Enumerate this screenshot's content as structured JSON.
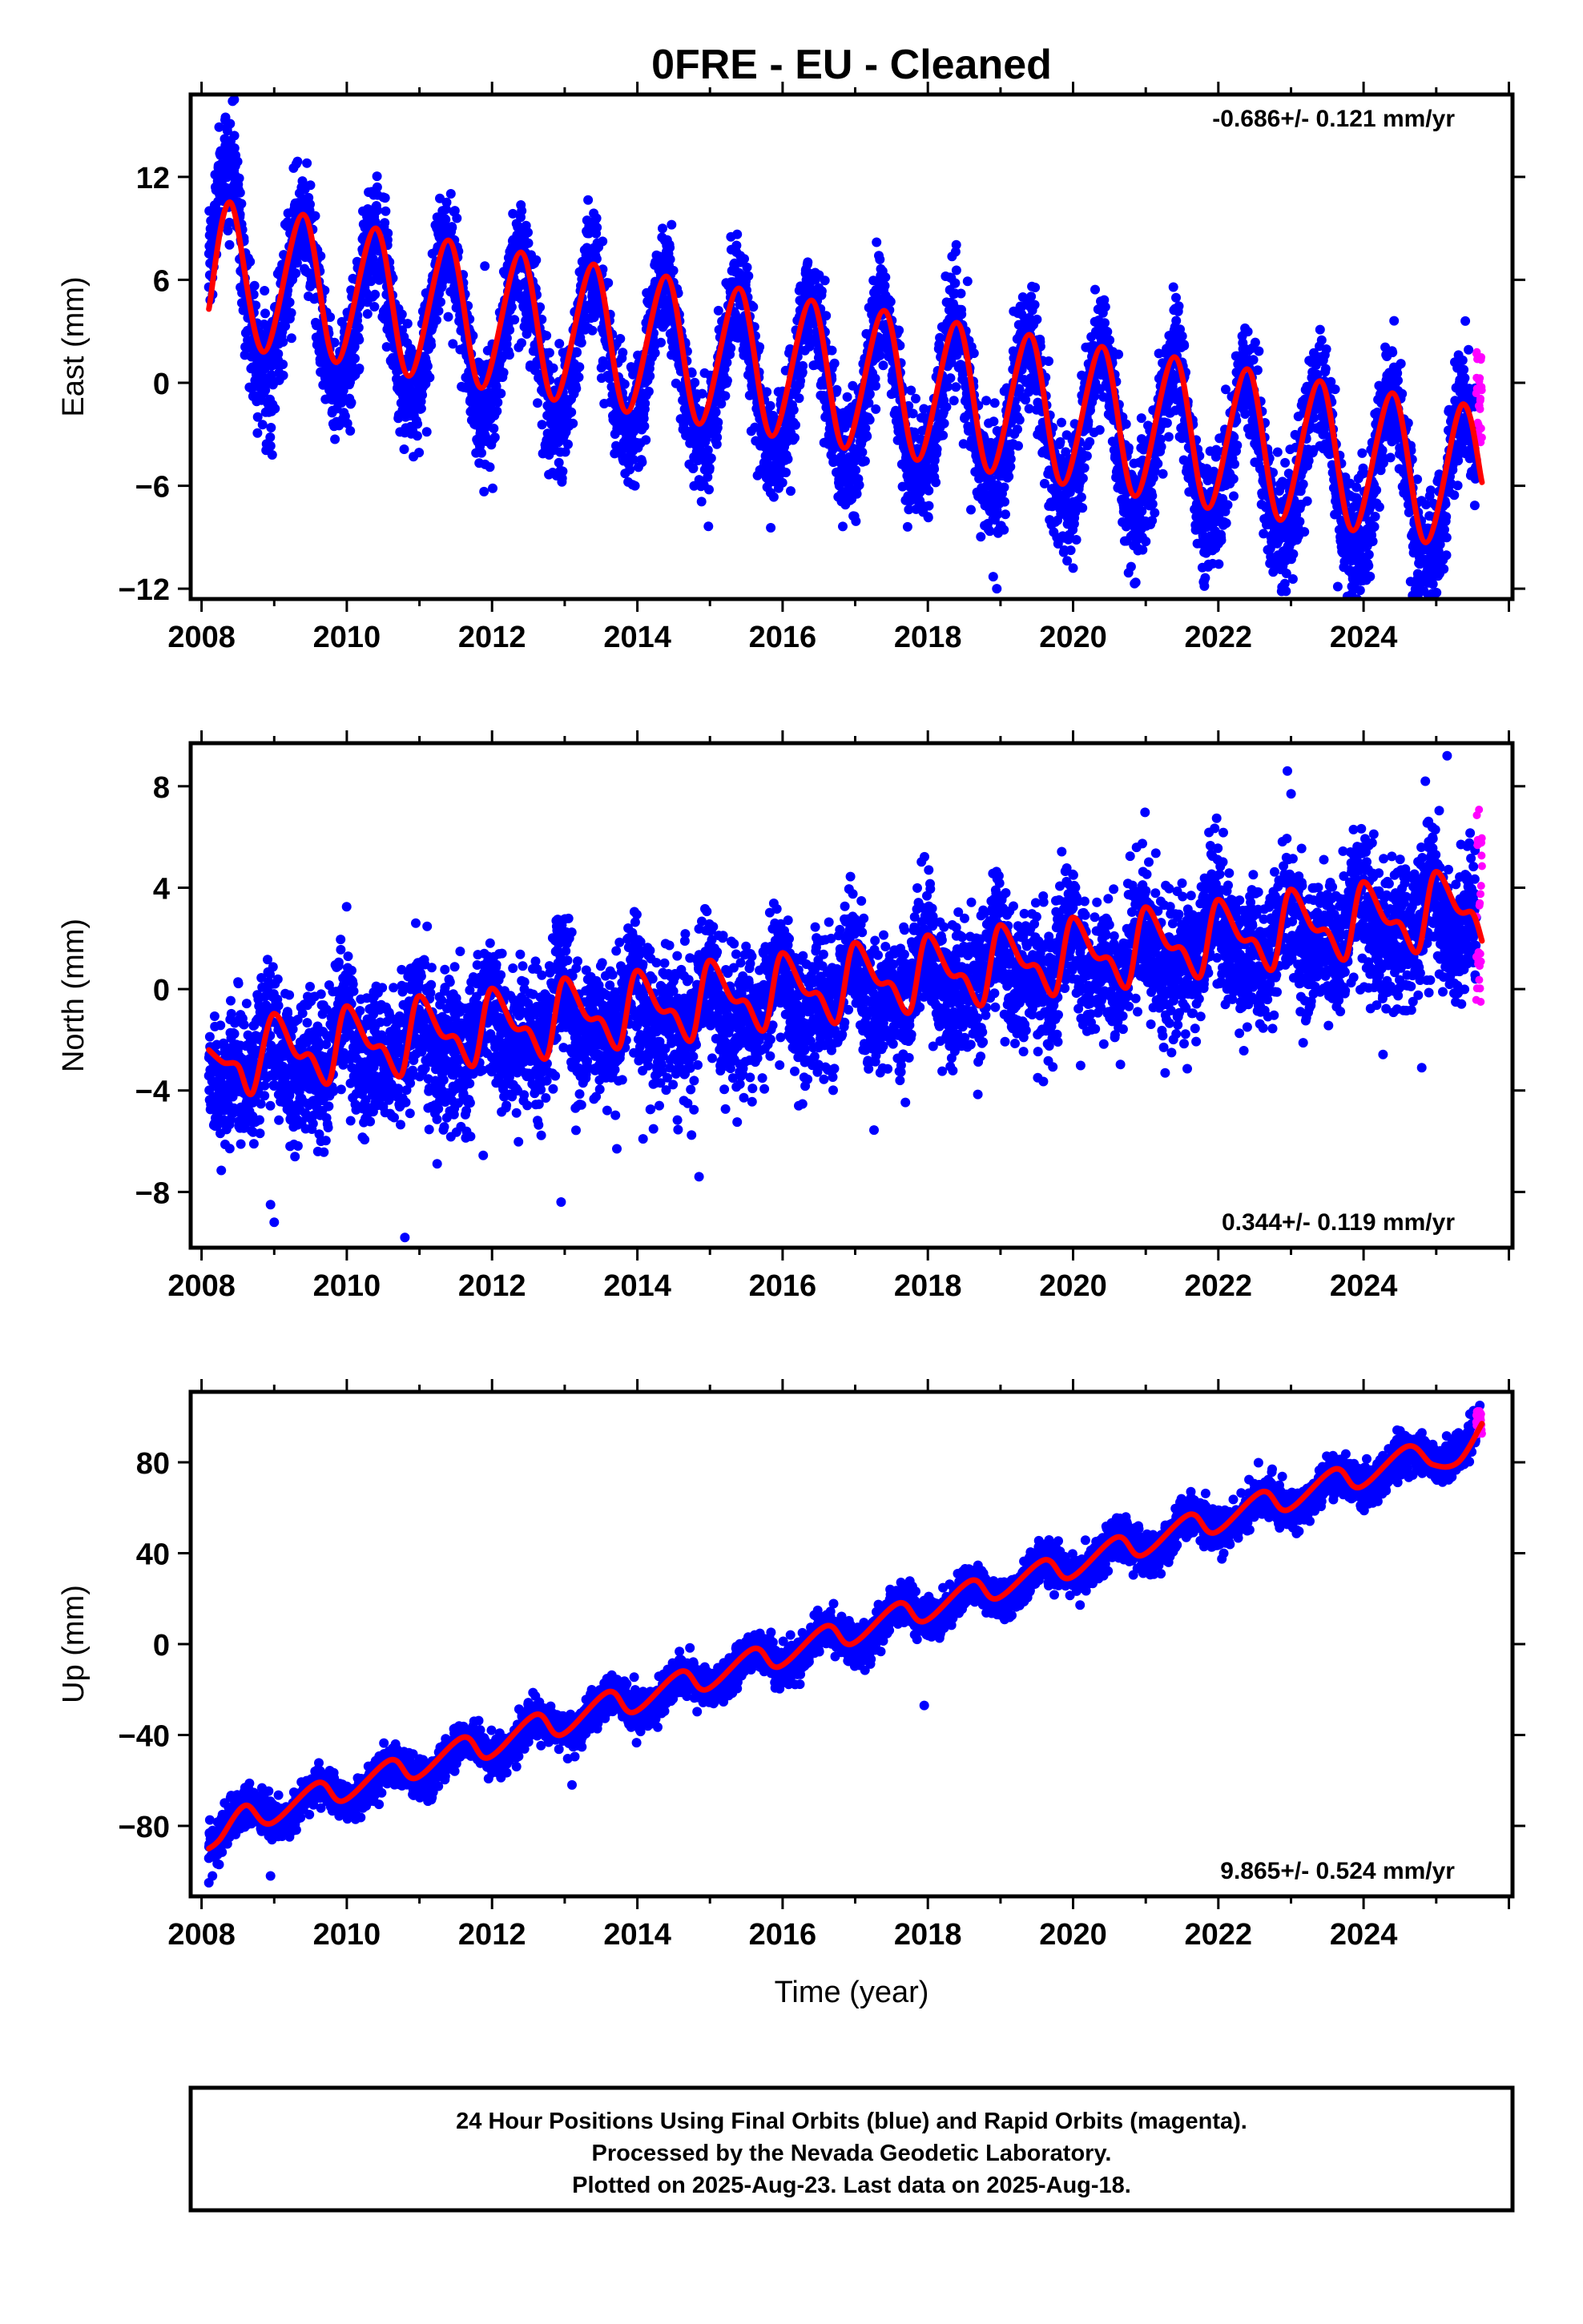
{
  "title": "0FRE  - EU - Cleaned",
  "colors": {
    "final_orbits": "#0000ff",
    "rapid_orbits": "#ff00ff",
    "model": "#ff0000",
    "frame": "#000000",
    "background": "#ffffff"
  },
  "chart_data": [
    {
      "type": "scatter",
      "panel": "east",
      "ylabel": "East (mm)",
      "xlabel": "",
      "rate_text": "-0.686+/- 0.121 mm/yr",
      "rate_position": "top-right",
      "xlim": [
        2007.85,
        2026.05
      ],
      "ylim": [
        -12.6,
        16.8
      ],
      "x_ticks": [
        2008,
        2010,
        2012,
        2014,
        2016,
        2018,
        2020,
        2022,
        2024
      ],
      "x_tick_labels": [
        "2008",
        "2010",
        "2012",
        "2014",
        "2016",
        "2018",
        "2020",
        "2022",
        "2024"
      ],
      "y_ticks": [
        -12,
        -6,
        0,
        6,
        12
      ],
      "y_tick_labels": [
        "-12",
        "-6",
        "0",
        "6",
        "12"
      ],
      "grid": false,
      "series": [
        {
          "name": "Final Orbits (blue)",
          "kind": "scatter",
          "x_range": [
            2008.1,
            2025.55
          ],
          "approx_points": 6300,
          "model": {
            "intercept_at_2008": 5.5,
            "rate_mm_per_yr": -0.686,
            "annual_amplitude": 4.6,
            "annual_peak_phase_yr": 0.38,
            "semiannual_amplitude": 0.4,
            "scatter_sd": 1.7
          },
          "extra_early_offset": {
            "until": 2008.55,
            "value": 2.5
          },
          "outliers": [
            [
              2018.95,
              -12.0
            ],
            [
              2018.9,
              -11.3
            ],
            [
              2020.0,
              -10.8
            ],
            [
              2024.95,
              -10.6
            ],
            [
              2025.4,
              3.6
            ],
            [
              2011.9,
              6.8
            ],
            [
              2009.45,
              12.8
            ],
            [
              2008.45,
              16.5
            ]
          ]
        },
        {
          "name": "Rapid Orbits (magenta)",
          "kind": "scatter",
          "x_range": [
            2025.55,
            2025.63
          ],
          "approx_points": 28,
          "values_range": [
            -3.5,
            1.8
          ]
        },
        {
          "name": "model fit",
          "kind": "line",
          "x_range": [
            2008.1,
            2025.63
          ],
          "points": [
            [
              2008.1,
              4.3
            ],
            [
              2008.4,
              10.5
            ],
            [
              2008.85,
              1.8
            ],
            [
              2009.4,
              9.8
            ],
            [
              2009.85,
              1.2
            ],
            [
              2010.4,
              9.0
            ],
            [
              2010.85,
              0.4
            ],
            [
              2011.4,
              8.3
            ],
            [
              2011.85,
              -0.3
            ],
            [
              2012.4,
              7.6
            ],
            [
              2012.85,
              -1.0
            ],
            [
              2013.4,
              6.9
            ],
            [
              2013.85,
              -1.7
            ],
            [
              2014.4,
              6.2
            ],
            [
              2014.85,
              -2.4
            ],
            [
              2015.4,
              5.5
            ],
            [
              2015.85,
              -3.1
            ],
            [
              2016.4,
              4.8
            ],
            [
              2016.85,
              -3.8
            ],
            [
              2017.4,
              4.2
            ],
            [
              2017.85,
              -4.5
            ],
            [
              2018.4,
              3.5
            ],
            [
              2018.85,
              -5.2
            ],
            [
              2019.4,
              2.8
            ],
            [
              2019.85,
              -5.9
            ],
            [
              2020.4,
              2.1
            ],
            [
              2020.85,
              -6.6
            ],
            [
              2021.4,
              1.5
            ],
            [
              2021.85,
              -7.3
            ],
            [
              2022.4,
              0.8
            ],
            [
              2022.85,
              -8.0
            ],
            [
              2023.4,
              0.1
            ],
            [
              2023.85,
              -8.6
            ],
            [
              2024.4,
              -0.6
            ],
            [
              2024.85,
              -9.3
            ],
            [
              2025.35,
              -1.3
            ],
            [
              2025.63,
              -5.8
            ]
          ]
        }
      ]
    },
    {
      "type": "scatter",
      "panel": "north",
      "ylabel": "North (mm)",
      "xlabel": "",
      "rate_text": "0.344+/- 0.119 mm/yr",
      "rate_position": "bottom-right",
      "xlim": [
        2007.85,
        2026.05
      ],
      "ylim": [
        -10.2,
        9.7
      ],
      "x_ticks": [
        2008,
        2010,
        2012,
        2014,
        2016,
        2018,
        2020,
        2022,
        2024
      ],
      "x_tick_labels": [
        "2008",
        "2010",
        "2012",
        "2014",
        "2016",
        "2018",
        "2020",
        "2022",
        "2024"
      ],
      "y_ticks": [
        -8,
        -4,
        0,
        4,
        8
      ],
      "y_tick_labels": [
        "-8",
        "-4",
        "0",
        "4",
        "8"
      ],
      "grid": false,
      "series": [
        {
          "name": "Final Orbits (blue)",
          "kind": "scatter",
          "x_range": [
            2008.1,
            2025.55
          ],
          "approx_points": 6300,
          "model": {
            "intercept_at_2008": -3.2,
            "rate_mm_per_yr": 0.344,
            "annual_amplitude": 0.9,
            "annual_peak_phase_yr": 0.95,
            "semiannual_amplitude": 0.7,
            "scatter_sd": 1.35
          },
          "outliers": [
            [
              2008.95,
              -8.5
            ],
            [
              2009.0,
              -9.2
            ],
            [
              2010.8,
              -9.8
            ],
            [
              2014.85,
              -7.4
            ],
            [
              2012.95,
              -8.4
            ],
            [
              2024.8,
              -3.1
            ],
            [
              2022.95,
              8.6
            ],
            [
              2024.85,
              8.2
            ],
            [
              2025.15,
              9.2
            ],
            [
              2010.95,
              2.6
            ]
          ]
        },
        {
          "name": "Rapid Orbits (magenta)",
          "kind": "scatter",
          "x_range": [
            2025.55,
            2025.63
          ],
          "approx_points": 28,
          "values_range": [
            -0.6,
            7.8
          ]
        },
        {
          "name": "model fit",
          "kind": "line",
          "x_range": [
            2008.1,
            2025.63
          ],
          "points": [
            [
              2008.1,
              -2.4
            ],
            [
              2008.3,
              -2.9
            ],
            [
              2008.5,
              -3.0
            ],
            [
              2008.7,
              -4.1
            ],
            [
              2008.98,
              -1.0
            ],
            [
              2009.3,
              -2.6
            ],
            [
              2009.5,
              -2.6
            ],
            [
              2009.75,
              -3.7
            ],
            [
              2009.98,
              -0.7
            ],
            [
              2010.3,
              -2.2
            ],
            [
              2010.5,
              -2.3
            ],
            [
              2010.75,
              -3.4
            ],
            [
              2010.98,
              -0.3
            ],
            [
              2011.3,
              -1.8
            ],
            [
              2011.5,
              -1.9
            ],
            [
              2011.75,
              -3.0
            ],
            [
              2011.98,
              0.0
            ],
            [
              2012.3,
              -1.5
            ],
            [
              2012.5,
              -1.6
            ],
            [
              2012.75,
              -2.7
            ],
            [
              2012.98,
              0.4
            ],
            [
              2013.3,
              -1.1
            ],
            [
              2013.5,
              -1.2
            ],
            [
              2013.75,
              -2.3
            ],
            [
              2013.98,
              0.7
            ],
            [
              2014.3,
              -0.8
            ],
            [
              2014.5,
              -0.9
            ],
            [
              2014.75,
              -2.0
            ],
            [
              2014.98,
              1.1
            ],
            [
              2015.3,
              -0.4
            ],
            [
              2015.5,
              -0.5
            ],
            [
              2015.75,
              -1.6
            ],
            [
              2015.98,
              1.4
            ],
            [
              2016.3,
              -0.1
            ],
            [
              2016.5,
              -0.2
            ],
            [
              2016.75,
              -1.3
            ],
            [
              2016.98,
              1.8
            ],
            [
              2017.3,
              0.3
            ],
            [
              2017.5,
              0.2
            ],
            [
              2017.75,
              -0.9
            ],
            [
              2017.98,
              2.1
            ],
            [
              2018.3,
              0.6
            ],
            [
              2018.5,
              0.5
            ],
            [
              2018.75,
              -0.6
            ],
            [
              2018.98,
              2.5
            ],
            [
              2019.3,
              1.0
            ],
            [
              2019.5,
              0.9
            ],
            [
              2019.75,
              -0.2
            ],
            [
              2019.98,
              2.8
            ],
            [
              2020.3,
              1.3
            ],
            [
              2020.5,
              1.2
            ],
            [
              2020.75,
              0.1
            ],
            [
              2020.98,
              3.2
            ],
            [
              2021.3,
              1.7
            ],
            [
              2021.5,
              1.6
            ],
            [
              2021.75,
              0.5
            ],
            [
              2021.98,
              3.5
            ],
            [
              2022.3,
              2.0
            ],
            [
              2022.5,
              1.9
            ],
            [
              2022.75,
              0.8
            ],
            [
              2022.98,
              3.9
            ],
            [
              2023.3,
              2.4
            ],
            [
              2023.5,
              2.3
            ],
            [
              2023.75,
              1.2
            ],
            [
              2023.98,
              4.2
            ],
            [
              2024.3,
              2.7
            ],
            [
              2024.5,
              2.6
            ],
            [
              2024.75,
              1.5
            ],
            [
              2024.98,
              4.6
            ],
            [
              2025.3,
              3.1
            ],
            [
              2025.5,
              3.0
            ],
            [
              2025.63,
              1.9
            ]
          ]
        }
      ]
    },
    {
      "type": "scatter",
      "panel": "up",
      "ylabel": "Up (mm)",
      "xlabel": "Time (year)",
      "rate_text": "9.865+/- 0.524 mm/yr",
      "rate_position": "bottom-right",
      "xlim": [
        2007.85,
        2026.05
      ],
      "ylim": [
        -111,
        111
      ],
      "x_ticks": [
        2008,
        2010,
        2012,
        2014,
        2016,
        2018,
        2020,
        2022,
        2024
      ],
      "x_tick_labels": [
        "2008",
        "2010",
        "2012",
        "2014",
        "2016",
        "2018",
        "2020",
        "2022",
        "2024"
      ],
      "y_ticks": [
        -80,
        -40,
        0,
        40,
        80
      ],
      "y_tick_labels": [
        "-80",
        "-40",
        "0",
        "40",
        "80"
      ],
      "grid": false,
      "series": [
        {
          "name": "Final Orbits (blue)",
          "kind": "scatter",
          "x_range": [
            2008.1,
            2025.55
          ],
          "approx_points": 6300,
          "model": {
            "intercept_at_2008": -84.0,
            "rate_mm_per_yr": 9.865,
            "annual_amplitude": 5.5,
            "annual_peak_phase_yr": 0.6,
            "semiannual_amplitude": 0.0,
            "scatter_sd": 4.2
          },
          "outliers": [
            [
              2008.1,
              -105.0
            ],
            [
              2008.15,
              -102.0
            ],
            [
              2008.95,
              -102.0
            ],
            [
              2013.1,
              -62.0
            ],
            [
              2017.95,
              -27.0
            ],
            [
              2025.6,
              105.0
            ],
            [
              2019.15,
              28.0
            ]
          ]
        },
        {
          "name": "Rapid Orbits (magenta)",
          "kind": "scatter",
          "x_range": [
            2025.55,
            2025.63
          ],
          "approx_points": 28,
          "values_range": [
            92.0,
            103.0
          ]
        },
        {
          "name": "model fit",
          "kind": "line",
          "x_range": [
            2008.1,
            2025.63
          ],
          "points": [
            [
              2008.1,
              -90.0
            ],
            [
              2008.25,
              -86.0
            ],
            [
              2008.6,
              -71.0
            ],
            [
              2008.95,
              -79.0
            ],
            [
              2009.6,
              -61.0
            ],
            [
              2009.95,
              -69.0
            ],
            [
              2010.6,
              -51.0
            ],
            [
              2010.95,
              -59.0
            ],
            [
              2011.6,
              -41.0
            ],
            [
              2011.95,
              -50.0
            ],
            [
              2012.6,
              -31.0
            ],
            [
              2012.95,
              -40.0
            ],
            [
              2013.6,
              -21.0
            ],
            [
              2013.95,
              -30.0
            ],
            [
              2014.6,
              -12.0
            ],
            [
              2014.95,
              -20.0
            ],
            [
              2015.6,
              -2.0
            ],
            [
              2015.95,
              -10.0
            ],
            [
              2016.6,
              8.0
            ],
            [
              2016.95,
              0.0
            ],
            [
              2017.6,
              18.0
            ],
            [
              2017.95,
              10.0
            ],
            [
              2018.6,
              28.0
            ],
            [
              2018.95,
              20.0
            ],
            [
              2019.6,
              37.0
            ],
            [
              2019.95,
              29.0
            ],
            [
              2020.6,
              47.0
            ],
            [
              2020.95,
              39.0
            ],
            [
              2021.6,
              57.0
            ],
            [
              2021.95,
              49.0
            ],
            [
              2022.6,
              67.0
            ],
            [
              2022.95,
              59.0
            ],
            [
              2023.6,
              77.0
            ],
            [
              2023.95,
              69.0
            ],
            [
              2024.6,
              87.0
            ],
            [
              2024.95,
              79.0
            ],
            [
              2025.3,
              80.0
            ],
            [
              2025.63,
              97.0
            ]
          ]
        }
      ]
    }
  ],
  "caption": {
    "line1": "24 Hour Positions Using Final Orbits (blue) and Rapid Orbits (magenta).",
    "line2": "Processed by the Nevada Geodetic Laboratory.",
    "line3": "Plotted on 2025-Aug-23. Last data on 2025-Aug-18."
  }
}
